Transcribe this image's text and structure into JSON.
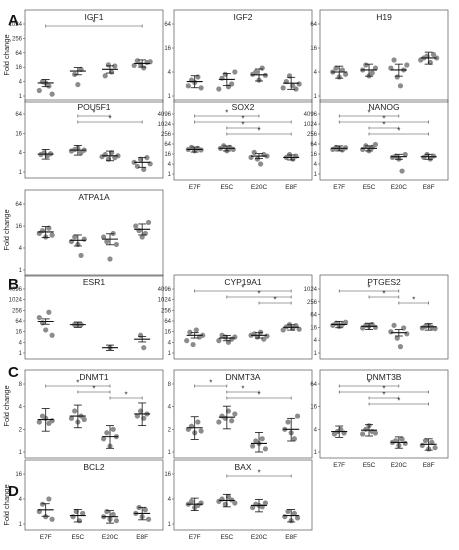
{
  "sections": [
    {
      "letter": "A"
    },
    {
      "letter": "B"
    },
    {
      "letter": "C"
    },
    {
      "letter": "D"
    }
  ],
  "y_axis_label": "Fold change",
  "chart_data": [
    {
      "type": "scatter",
      "title": "IGF1",
      "section": "A",
      "scale": "log2",
      "ylim": [
        1,
        1024
      ],
      "yticks": [
        "1",
        "4",
        "16",
        "64",
        "256",
        "1024"
      ],
      "categories": [
        "E7F",
        "E5C",
        "E20C",
        "E8F"
      ],
      "points": [
        [
          1.7,
          4,
          3.5,
          2.6,
          1.2
        ],
        [
          8,
          3,
          13
        ],
        [
          7,
          20,
          10,
          18
        ],
        [
          19,
          30,
          21,
          15,
          25,
          27
        ]
      ],
      "means": [
        3.5,
        11,
        13,
        23
      ],
      "sig": [
        [
          0,
          3
        ]
      ]
    },
    {
      "type": "scatter",
      "title": "IGF2",
      "section": "A",
      "scale": "log2",
      "ylim": [
        1,
        64
      ],
      "yticks": [
        "1",
        "4",
        "16",
        "64"
      ],
      "categories": [
        "E7F",
        "E5C",
        "E20C",
        "E8F"
      ],
      "points": [
        [
          1.8,
          2.5,
          2.2,
          3,
          1.6
        ],
        [
          1.5,
          2.8,
          3.5,
          1.7,
          2,
          4
        ],
        [
          3.5,
          4,
          2.5,
          5,
          3.3
        ],
        [
          1.6,
          2.3,
          3.2,
          1.8,
          1.5,
          2
        ]
      ],
      "means": [
        2.3,
        2.6,
        3.4,
        2.1
      ],
      "sig": []
    },
    {
      "type": "scatter",
      "title": "H19",
      "section": "A",
      "scale": "log2",
      "ylim": [
        1,
        64
      ],
      "yticks": [
        "1",
        "4",
        "16",
        "64"
      ],
      "categories": [
        "E7F",
        "E5C",
        "E20C",
        "E8F"
      ],
      "points": [
        [
          4,
          5,
          3,
          4.5,
          3.5
        ],
        [
          4.5,
          6,
          3.2,
          3.8,
          5
        ],
        [
          5,
          8,
          3,
          1.8,
          4.5,
          6
        ],
        [
          8,
          9,
          10,
          7,
          11,
          9
        ]
      ],
      "means": [
        4,
        4.5,
        4.5,
        9
      ],
      "sig": []
    },
    {
      "type": "scatter",
      "title": "POU5F1",
      "section": "A",
      "scale": "log2",
      "ylim": [
        1,
        64
      ],
      "yticks": [
        "1",
        "4",
        "16",
        "64"
      ],
      "categories": [
        "E7F",
        "E5C",
        "E20C",
        "E8F"
      ],
      "points": [
        [
          3.5,
          4,
          3.2,
          3.7
        ],
        [
          4.5,
          5,
          5.5,
          4,
          4.8
        ],
        [
          3,
          3.5,
          2.5,
          4,
          2.8,
          3.2
        ],
        [
          2,
          1.5,
          2.5,
          1.2,
          2.8,
          1.8
        ]
      ],
      "means": [
        3.6,
        4.8,
        3.2,
        2
      ],
      "sig": [
        [
          1,
          2
        ],
        [
          1,
          3
        ]
      ]
    },
    {
      "type": "scatter",
      "title": "SOX2",
      "section": "A",
      "scale": "log2",
      "ylim": [
        1,
        4096
      ],
      "yticks": [
        "1",
        "4",
        "16",
        "64",
        "256",
        "1024",
        "4096"
      ],
      "categories": [
        "E7F",
        "E5C",
        "E20C",
        "E8F"
      ],
      "points": [
        [
          30,
          40,
          25,
          35,
          28
        ],
        [
          35,
          50,
          25,
          40,
          30
        ],
        [
          10,
          20,
          8,
          4,
          15,
          12
        ],
        [
          10,
          15,
          8,
          12
        ]
      ],
      "means": [
        30,
        35,
        12,
        10
      ],
      "sig": [
        [
          0,
          2
        ],
        [
          0,
          3
        ],
        [
          1,
          2
        ],
        [
          1,
          3
        ]
      ]
    },
    {
      "type": "scatter",
      "title": "NANOG",
      "section": "A",
      "scale": "log2",
      "ylim": [
        1,
        4096
      ],
      "yticks": [
        "1",
        "4",
        "16",
        "64",
        "256",
        "1024",
        "4096"
      ],
      "categories": [
        "E7F",
        "E5C",
        "E20C",
        "E8F"
      ],
      "points": [
        [
          30,
          40,
          35,
          28,
          38
        ],
        [
          30,
          50,
          25,
          40,
          60
        ],
        [
          10,
          12,
          8,
          1.5,
          15
        ],
        [
          10,
          15,
          8,
          12
        ]
      ],
      "means": [
        35,
        35,
        11,
        11
      ],
      "sig": [
        [
          0,
          2
        ],
        [
          0,
          3
        ],
        [
          1,
          2
        ],
        [
          1,
          3
        ]
      ]
    },
    {
      "type": "scatter",
      "title": "ATPA1A",
      "section": "A",
      "scale": "log2",
      "ylim": [
        1,
        64
      ],
      "yticks": [
        "1",
        "4",
        "16",
        "64"
      ],
      "categories": [
        "E7F",
        "E5C",
        "E20C",
        "E8F"
      ],
      "points": [
        [
          10,
          12,
          8,
          14,
          9
        ],
        [
          6,
          8,
          5,
          2.5,
          7
        ],
        [
          8,
          6,
          2,
          10,
          5
        ],
        [
          16,
          12,
          8,
          10,
          20
        ]
      ],
      "means": [
        11,
        6.5,
        7,
        13
      ],
      "sig": []
    },
    {
      "type": "scatter",
      "title": "ESR1",
      "section": "B",
      "scale": "log2",
      "ylim": [
        1,
        4096
      ],
      "yticks": [
        "1",
        "4",
        "16",
        "64",
        "256",
        "1024",
        "4096"
      ],
      "categories": [
        "E7F",
        "E5C",
        "E20C",
        "E8F"
      ],
      "points": [
        [
          100,
          50,
          20,
          200,
          10
        ],
        [
          40,
          40,
          40
        ],
        [
          2
        ],
        [
          10,
          2
        ]
      ],
      "means": [
        60,
        40,
        2,
        6
      ],
      "sig": []
    },
    {
      "type": "scatter",
      "title": "CYP19A1",
      "section": "B",
      "scale": "log2",
      "ylim": [
        1,
        4096
      ],
      "yticks": [
        "1",
        "4",
        "16",
        "64",
        "256",
        "1024",
        "4096"
      ],
      "categories": [
        "E7F",
        "E5C",
        "E20C",
        "E8F"
      ],
      "points": [
        [
          5,
          15,
          3,
          20,
          8,
          10
        ],
        [
          5,
          10,
          8,
          4,
          6,
          8
        ],
        [
          10,
          12,
          8,
          15,
          6,
          9
        ],
        [
          20,
          30,
          40,
          25,
          35,
          22
        ]
      ],
      "means": [
        10,
        7,
        10,
        28
      ],
      "sig": [
        [
          0,
          3
        ],
        [
          1,
          3
        ],
        [
          2,
          3
        ]
      ]
    },
    {
      "type": "scatter",
      "title": "PTGES2",
      "section": "B",
      "scale": "log2",
      "ylim": [
        1,
        1024
      ],
      "yticks": [
        "1",
        "4",
        "16",
        "64",
        "256",
        "1024"
      ],
      "categories": [
        "E7F",
        "E5C",
        "E20C",
        "E8F"
      ],
      "points": [
        [
          20,
          25,
          18,
          22,
          28
        ],
        [
          15,
          20,
          18,
          22,
          16
        ],
        [
          10,
          20,
          5,
          2,
          15,
          8
        ],
        [
          15,
          18,
          20,
          16,
          14
        ]
      ],
      "means": [
        22,
        18,
        9,
        17
      ],
      "sig": [
        [
          0,
          2
        ],
        [
          1,
          2
        ],
        [
          2,
          3
        ]
      ]
    },
    {
      "type": "scatter",
      "title": "DNMT1",
      "section": "C",
      "scale": "log2",
      "ylim": [
        1,
        8
      ],
      "yticks": [
        "1",
        "2",
        "4",
        "8"
      ],
      "categories": [
        "E7F",
        "E5C",
        "E20C",
        "E8F"
      ],
      "points": [
        [
          2.5,
          3,
          2.8,
          2.4,
          2.6
        ],
        [
          2.8,
          3.5,
          2.5,
          3,
          2.7
        ],
        [
          1.5,
          1.8,
          1.2,
          2,
          1.6
        ],
        [
          3,
          3.5,
          2.8,
          3.2
        ]
      ],
      "means": [
        2.7,
        3,
        1.6,
        3.2
      ],
      "sig": [
        [
          0,
          2
        ],
        [
          1,
          2
        ],
        [
          2,
          3
        ]
      ]
    },
    {
      "type": "scatter",
      "title": "DNMT3A",
      "section": "C",
      "scale": "log2",
      "ylim": [
        1,
        8
      ],
      "yticks": [
        "1",
        "2",
        "4",
        "8"
      ],
      "categories": [
        "E7F",
        "E5C",
        "E20C",
        "E8F"
      ],
      "points": [
        [
          2,
          2.2,
          1.8,
          2.5,
          1.9
        ],
        [
          2.5,
          3,
          2.8,
          3.5,
          2.6,
          3.2
        ],
        [
          1.2,
          1.4,
          1.3,
          1.5,
          1.1
        ],
        [
          2,
          2.5,
          1.8,
          1.5,
          3
        ]
      ],
      "means": [
        2.1,
        2.9,
        1.3,
        2
      ],
      "sig": [
        [
          0,
          1
        ],
        [
          1,
          2
        ],
        [
          1,
          3
        ]
      ]
    },
    {
      "type": "scatter",
      "title": "DNMT3B",
      "section": "C",
      "scale": "log2",
      "ylim": [
        1,
        64
      ],
      "yticks": [
        "1",
        "4",
        "16",
        "64"
      ],
      "categories": [
        "E7F",
        "E5C",
        "E20C",
        "E8F"
      ],
      "points": [
        [
          3,
          3.5,
          4,
          3.2
        ],
        [
          3,
          4,
          5,
          3.5,
          3.2
        ],
        [
          1.8,
          2,
          1.5,
          2.2,
          1.7
        ],
        [
          1.5,
          2,
          1.2,
          1.8,
          1.3
        ]
      ],
      "means": [
        3.5,
        3.8,
        1.8,
        1.6
      ],
      "sig": [
        [
          0,
          2
        ],
        [
          0,
          3
        ],
        [
          1,
          2
        ],
        [
          1,
          3
        ]
      ]
    },
    {
      "type": "scatter",
      "title": "BCL2",
      "section": "D",
      "scale": "log2",
      "ylim": [
        1,
        16
      ],
      "yticks": [
        "1",
        "4",
        "16"
      ],
      "categories": [
        "E7F",
        "E5C",
        "E20C",
        "E8F"
      ],
      "points": [
        [
          2,
          3,
          1.5,
          4,
          1.3
        ],
        [
          1.5,
          2,
          1.2,
          1.8
        ],
        [
          1.5,
          2,
          1.3,
          1.7,
          1.2
        ],
        [
          1.8,
          2.5,
          1.5,
          2.2,
          1.3
        ]
      ],
      "means": [
        2.2,
        1.6,
        1.5,
        1.8
      ],
      "sig": []
    },
    {
      "type": "scatter",
      "title": "BAX",
      "section": "D",
      "scale": "log2",
      "ylim": [
        1,
        16
      ],
      "yticks": [
        "1",
        "4",
        "16"
      ],
      "categories": [
        "E7F",
        "E5C",
        "E20C",
        "E8F"
      ],
      "points": [
        [
          3,
          3.5,
          2.5,
          2.8,
          3.2
        ],
        [
          3.5,
          4,
          3,
          4.5,
          3.8,
          3.2
        ],
        [
          2.5,
          3,
          2.8,
          2.6,
          3.2
        ],
        [
          1.5,
          2,
          1.2,
          1.8,
          1.4
        ]
      ],
      "means": [
        3,
        3.7,
        2.8,
        1.6
      ],
      "sig": [
        [
          1,
          3
        ]
      ]
    }
  ]
}
